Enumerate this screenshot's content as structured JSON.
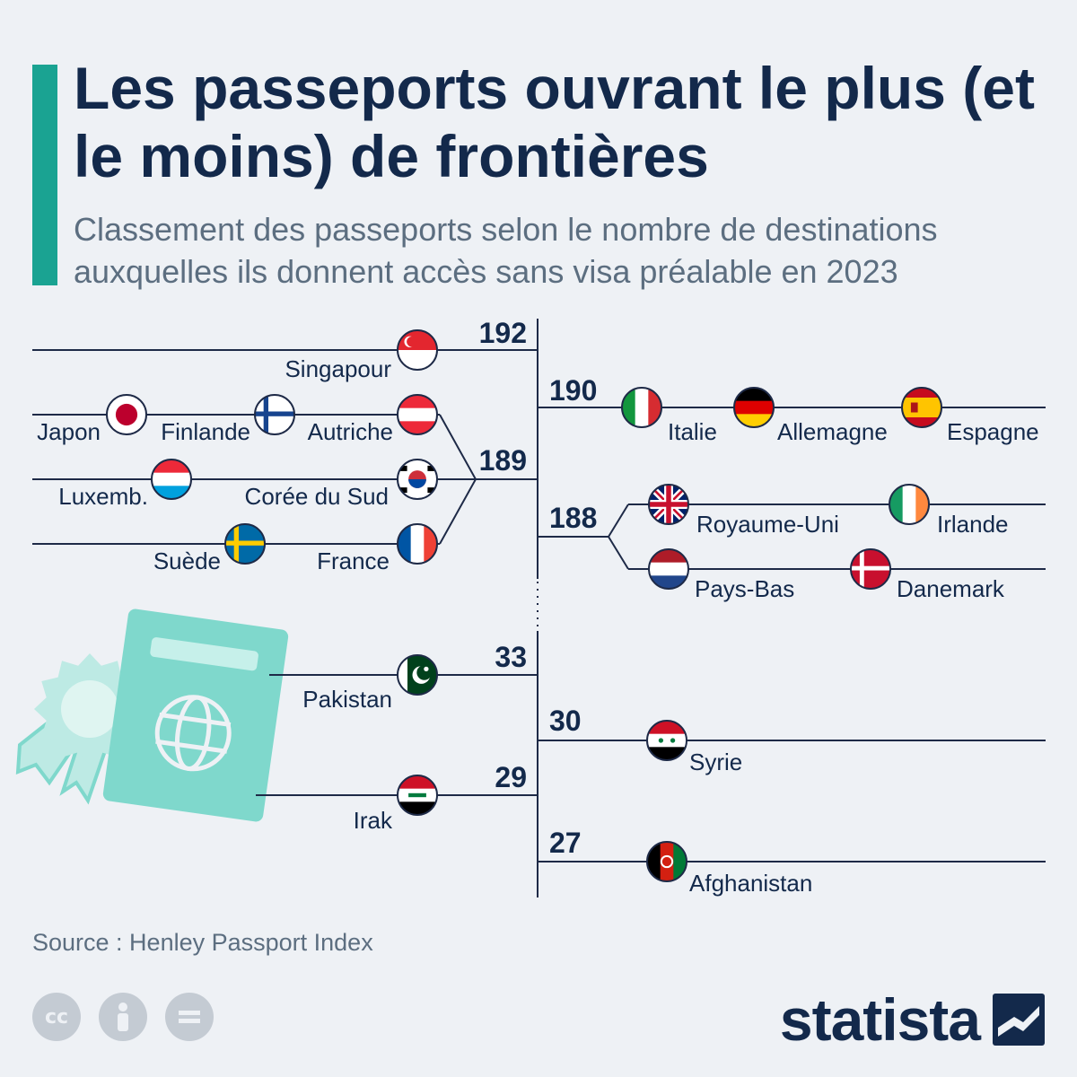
{
  "header": {
    "title": "Les passeports ouvrant le plus (et le moins) de frontières",
    "subtitle": "Classement des passeports selon le nombre de destinations auxquelles ils donnent accès sans visa préalable en 2023"
  },
  "footer": {
    "source": "Source : Henley Passport Index",
    "brand": "statista",
    "license_icons": [
      "cc-icon",
      "attribution-icon",
      "no-derivatives-icon"
    ]
  },
  "colors": {
    "accent": "#1aa392",
    "text_dark": "#13294b",
    "text_muted": "#5c6e80",
    "line": "#1e2a47",
    "background": "#eef1f5",
    "passport": "#7fd8cc",
    "rosette": "#bdeae4"
  },
  "chart_data": {
    "type": "bracket-ranking",
    "unit": "destinations sans visa",
    "top_group": [
      {
        "value": 192,
        "countries": [
          "Singapour"
        ]
      },
      {
        "value": 190,
        "countries": [
          "Italie",
          "Allemagne",
          "Espagne"
        ]
      },
      {
        "value": 189,
        "countries": [
          "Japon",
          "Finlande",
          "Autriche",
          "Luxemb.",
          "Corée du Sud",
          "Suède",
          "France"
        ]
      },
      {
        "value": 188,
        "countries": [
          "Royaume-Uni",
          "Irlande",
          "Pays-Bas",
          "Danemark"
        ]
      }
    ],
    "bottom_group": [
      {
        "value": 33,
        "countries": [
          "Pakistan"
        ]
      },
      {
        "value": 30,
        "countries": [
          "Syrie"
        ]
      },
      {
        "value": 29,
        "countries": [
          "Irak"
        ]
      },
      {
        "value": 27,
        "countries": [
          "Afghanistan"
        ]
      }
    ]
  }
}
